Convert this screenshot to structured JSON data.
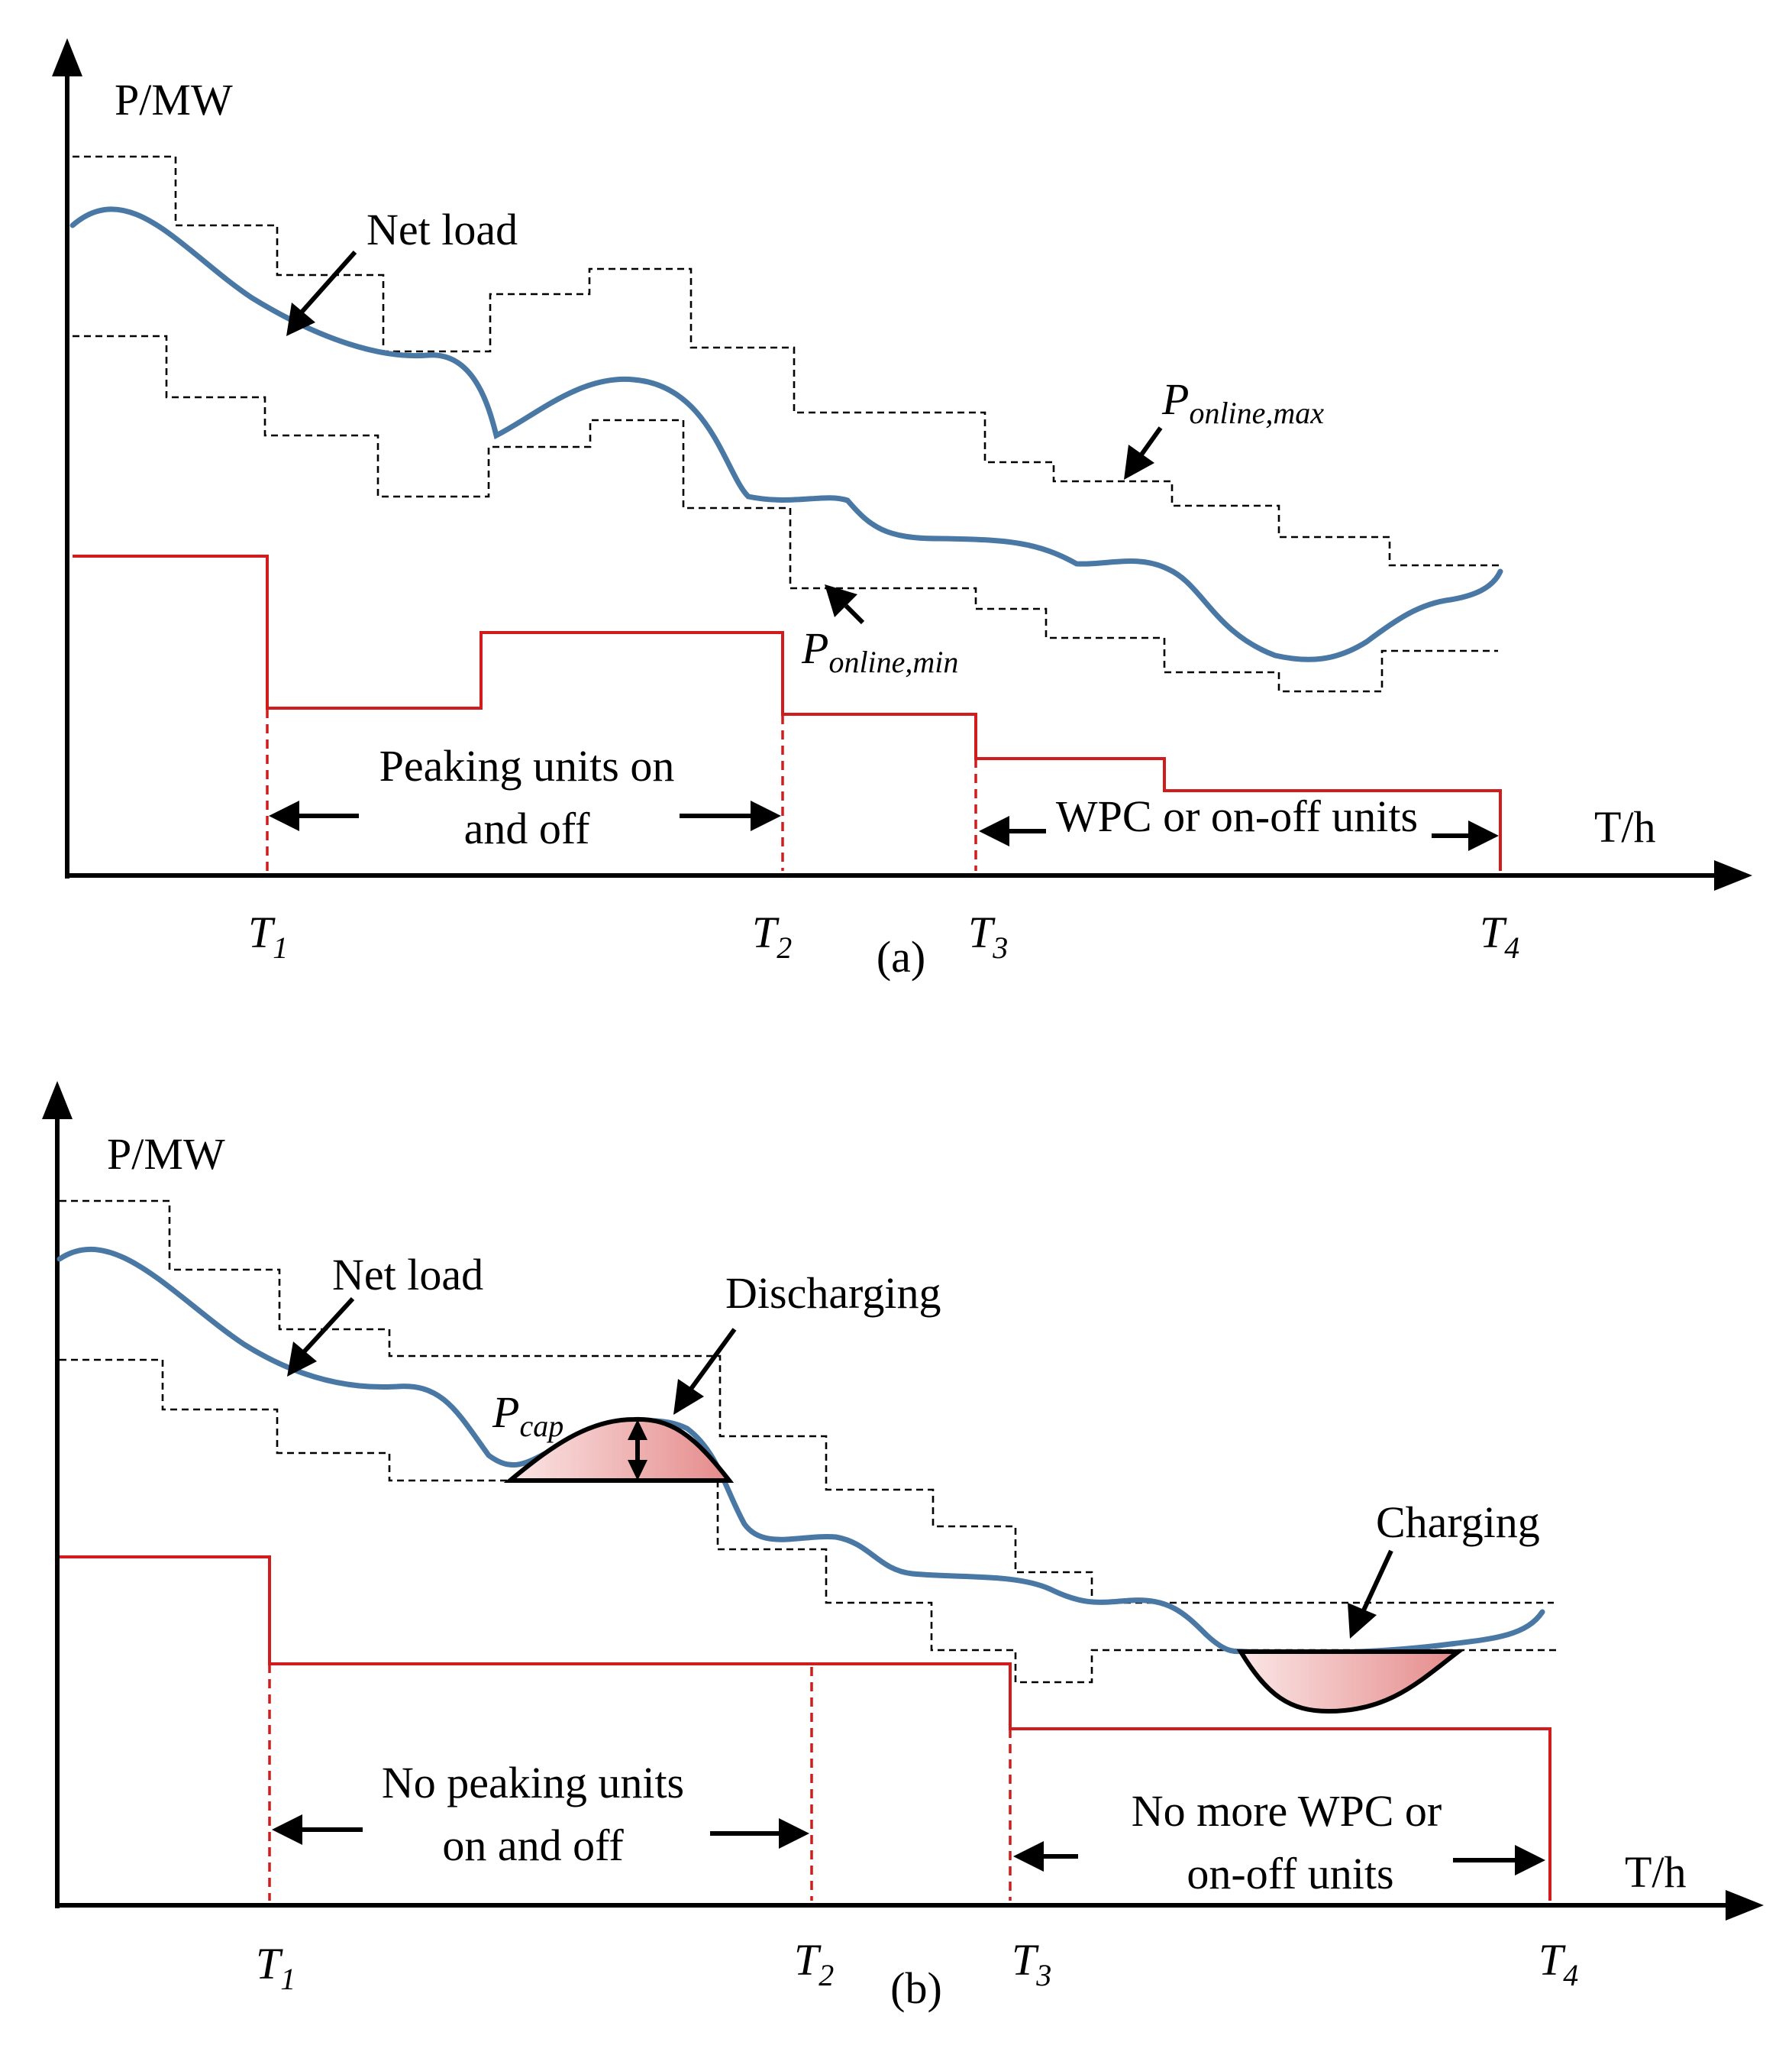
{
  "panel_a": {
    "y_axis_label": "P/MW",
    "x_axis_label": "T/h",
    "curve_label": "Net load",
    "upper_bound_label": {
      "main": "P",
      "sub": "online,max"
    },
    "lower_bound_label": {
      "main": "P",
      "sub": "online,min"
    },
    "zone1_line1": "Peaking units on",
    "zone1_line2": "and off",
    "zone2_text": "WPC or on-off units",
    "ticks": {
      "t1": "T",
      "t1s": "1",
      "t2": "T",
      "t2s": "2",
      "t3": "T",
      "t3s": "3",
      "t4": "T",
      "t4s": "4"
    },
    "caption": "(a)"
  },
  "panel_b": {
    "y_axis_label": "P/MW",
    "x_axis_label": "T/h",
    "curve_label": "Net load",
    "discharge_label": "Discharging",
    "charge_label": "Charging",
    "cap_label": {
      "main": "P",
      "sub": "cap"
    },
    "zone1_line1": "No peaking units",
    "zone1_line2": "on and off",
    "zone2_line1": "No more WPC or",
    "zone2_line2": "on-off units",
    "ticks": {
      "t1": "T",
      "t1s": "1",
      "t2": "T",
      "t2s": "2",
      "t3": "T",
      "t3s": "3",
      "t4": "T",
      "t4s": "4"
    },
    "caption": "(b)"
  },
  "colors": {
    "net_load": "#4a78a5",
    "peaking_output": "#d01c1c",
    "storage_fill_light": "#fbe6e6",
    "storage_fill_dark": "#e58a8a"
  }
}
